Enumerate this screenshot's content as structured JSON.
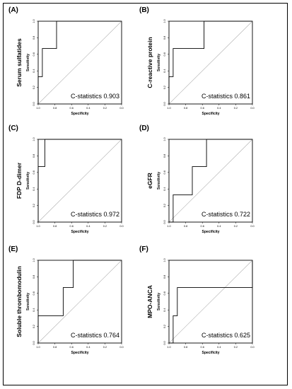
{
  "chart_data": [
    {
      "type": "line",
      "panel_label": "(A)",
      "ylabel_outer": "Serum sulfatides",
      "xlabel": "Specificity",
      "ylabel": "Sensitivity",
      "statistic": "C-statistics 0.903",
      "xlim": [
        1.0,
        0.0
      ],
      "ylim": [
        0.0,
        1.0
      ],
      "xticks": [
        "1.0",
        "0.8",
        "0.6",
        "0.4",
        "0.2",
        "0.0"
      ],
      "yticks": [
        "0.0",
        "0.2",
        "0.4",
        "0.6",
        "0.8",
        "1.0"
      ],
      "x": [
        1.0,
        1.0,
        0.95,
        0.95,
        0.78,
        0.78,
        0.0
      ],
      "y": [
        0.0,
        0.33,
        0.33,
        0.67,
        0.67,
        1.0,
        1.0
      ]
    },
    {
      "type": "line",
      "panel_label": "(B)",
      "ylabel_outer": "C-reactive protein",
      "xlabel": "Specificity",
      "ylabel": "Sensitivity",
      "statistic": "C-statistics 0.861",
      "xlim": [
        1.0,
        0.0
      ],
      "ylim": [
        0.0,
        1.0
      ],
      "xticks": [
        "1.0",
        "0.8",
        "0.6",
        "0.4",
        "0.2",
        "0.0"
      ],
      "yticks": [
        "0.0",
        "0.2",
        "0.4",
        "0.6",
        "0.8",
        "1.0"
      ],
      "x": [
        1.0,
        1.0,
        0.95,
        0.95,
        0.58,
        0.58,
        0.0
      ],
      "y": [
        0.0,
        0.33,
        0.33,
        0.67,
        0.67,
        1.0,
        1.0
      ]
    },
    {
      "type": "line",
      "panel_label": "(C)",
      "ylabel_outer": "FDP D-dimer",
      "xlabel": "Specificity",
      "ylabel": "Sensitivity",
      "statistic": "C-statistics 0.972",
      "xlim": [
        1.0,
        0.0
      ],
      "ylim": [
        0.0,
        1.0
      ],
      "xticks": [
        "1.0",
        "0.8",
        "0.6",
        "0.4",
        "0.2",
        "0.0"
      ],
      "yticks": [
        "0.0",
        "0.2",
        "0.4",
        "0.6",
        "0.8",
        "1.0"
      ],
      "x": [
        1.0,
        1.0,
        0.92,
        0.92,
        0.0
      ],
      "y": [
        0.0,
        0.67,
        0.67,
        1.0,
        1.0
      ]
    },
    {
      "type": "line",
      "panel_label": "(D)",
      "ylabel_outer": "eGFR",
      "xlabel": "Specificity",
      "ylabel": "Sensitivity",
      "statistic": "C-statistics 0.722",
      "xlim": [
        1.0,
        0.0
      ],
      "ylim": [
        0.0,
        1.0
      ],
      "xticks": [
        "1.0",
        "0.8",
        "0.6",
        "0.4",
        "0.2",
        "0.0"
      ],
      "yticks": [
        "0.0",
        "0.2",
        "0.4",
        "0.6",
        "0.8",
        "1.0"
      ],
      "x": [
        1.0,
        0.95,
        0.95,
        0.72,
        0.72,
        0.55,
        0.55,
        0.0
      ],
      "y": [
        0.0,
        0.0,
        0.33,
        0.33,
        0.67,
        0.67,
        1.0,
        1.0
      ]
    },
    {
      "type": "line",
      "panel_label": "(E)",
      "ylabel_outer": "Soluble thrombomodulin",
      "xlabel": "Specificity",
      "ylabel": "Sensitivity",
      "statistic": "C-statistics 0.764",
      "xlim": [
        1.0,
        0.0
      ],
      "ylim": [
        0.0,
        1.0
      ],
      "xticks": [
        "1.0",
        "0.8",
        "0.6",
        "0.4",
        "0.2",
        "0.0"
      ],
      "yticks": [
        "0.0",
        "0.2",
        "0.4",
        "0.6",
        "0.8",
        "1.0"
      ],
      "x": [
        1.0,
        1.0,
        0.7,
        0.7,
        0.58,
        0.58,
        0.0
      ],
      "y": [
        0.0,
        0.33,
        0.33,
        0.67,
        0.67,
        1.0,
        1.0
      ]
    },
    {
      "type": "line",
      "panel_label": "(F)",
      "ylabel_outer": "MPO-ANCA",
      "xlabel": "Specificity",
      "ylabel": "Sensitivity",
      "statistic": "C-statistics 0.625",
      "xlim": [
        1.0,
        0.0
      ],
      "ylim": [
        0.0,
        1.0
      ],
      "xticks": [
        "1.0",
        "0.8",
        "0.6",
        "0.4",
        "0.2",
        "0.0"
      ],
      "yticks": [
        "0.0",
        "0.2",
        "0.4",
        "0.6",
        "0.8",
        "1.0"
      ],
      "x": [
        1.0,
        0.95,
        0.95,
        0.9,
        0.9,
        0.0,
        0.0
      ],
      "y": [
        0.0,
        0.0,
        0.33,
        0.33,
        0.67,
        0.67,
        1.0
      ]
    }
  ]
}
